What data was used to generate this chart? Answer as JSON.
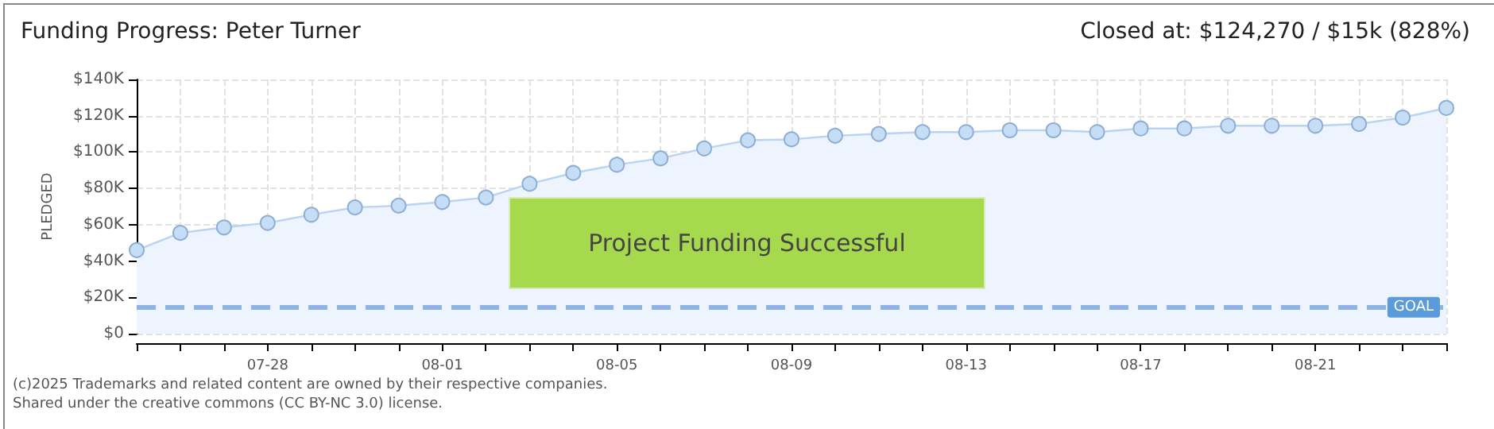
{
  "chart_data": {
    "type": "area",
    "title": "Funding Progress: Peter Turner",
    "subtitle": "Closed at: $124,270 / $15k (828%)",
    "ylabel": "PLEDGED",
    "categories": [
      null,
      null,
      null,
      "07-28",
      null,
      null,
      null,
      "08-01",
      null,
      null,
      null,
      "08-05",
      null,
      null,
      null,
      "08-09",
      null,
      null,
      null,
      "08-13",
      null,
      null,
      null,
      "08-17",
      null,
      null,
      null,
      "08-21",
      null,
      null,
      null
    ],
    "series": [
      {
        "color": "#b8d4f2",
        "values": [
          46000,
          55500,
          58500,
          61000,
          65500,
          69500,
          70500,
          72500,
          75000,
          82500,
          88500,
          93000,
          96500,
          102000,
          106500,
          107000,
          109000,
          110000,
          111000,
          111000,
          112000,
          112000,
          111000,
          113000,
          113000,
          114500,
          114500,
          114500,
          115500,
          119000,
          124270
        ]
      }
    ],
    "ylim": [
      0,
      140000
    ],
    "yticks": [
      {
        "value": 0,
        "label": "$0"
      },
      {
        "value": 20000,
        "label": "$20K"
      },
      {
        "value": 40000,
        "label": "$40K"
      },
      {
        "value": 60000,
        "label": "$60K"
      },
      {
        "value": 80000,
        "label": "$80K"
      },
      {
        "value": 100000,
        "label": "$100K"
      },
      {
        "value": 120000,
        "label": "$120K"
      },
      {
        "value": 140000,
        "label": "$140K"
      }
    ],
    "grid": true,
    "marker": "circle",
    "ref_lines": [
      {
        "axis": "y",
        "value": 15000,
        "label": "GOAL",
        "color": "#8fb4e3",
        "line_style": "dashed"
      }
    ],
    "annotations": [
      "Project Funding Successful",
      "(c)2025 Trademarks and related content are owned by their respective companies.",
      "Shared under the creative commons (CC BY-NC 3.0) license."
    ]
  }
}
